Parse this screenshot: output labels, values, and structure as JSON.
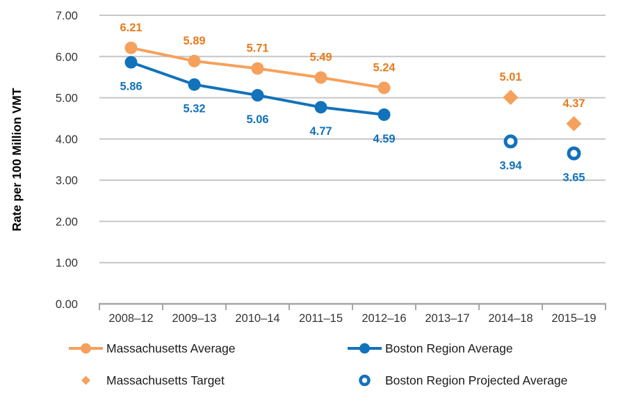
{
  "chart_data": {
    "type": "line",
    "title": "",
    "xlabel": "",
    "ylabel": "Rate per 100 Million VMT",
    "categories": [
      "2008–12",
      "2009–13",
      "2010–14",
      "2011–15",
      "2012–16",
      "2013–17",
      "2014–18",
      "2015–19"
    ],
    "y_ticks": [
      "0.00",
      "1.00",
      "2.00",
      "3.00",
      "4.00",
      "5.00",
      "6.00",
      "7.00"
    ],
    "ylim": [
      0,
      7
    ],
    "grid": "horizontal",
    "legend_position": "bottom",
    "series": [
      {
        "name": "Massachusetts Average",
        "type": "line",
        "marker": "circle",
        "color": "#F5A15D",
        "label_color": "#E87C1E",
        "label_position": "above",
        "x": [
          0,
          1,
          2,
          3,
          4
        ],
        "values": [
          6.21,
          5.89,
          5.71,
          5.49,
          5.24
        ]
      },
      {
        "name": "Boston Region Average",
        "type": "line",
        "marker": "circle",
        "color": "#1272BA",
        "label_color": "#1272BA",
        "label_position": "below",
        "x": [
          0,
          1,
          2,
          3,
          4
        ],
        "values": [
          5.86,
          5.32,
          5.06,
          4.77,
          4.59
        ]
      },
      {
        "name": "Massachusetts Target",
        "type": "scatter",
        "marker": "diamond",
        "color": "#F5A15D",
        "label_color": "#E87C1E",
        "label_position": "above",
        "x": [
          6,
          7
        ],
        "values": [
          5.01,
          4.37
        ]
      },
      {
        "name": "Boston Region Projected Average",
        "type": "scatter",
        "marker": "open-circle",
        "color": "#1272BA",
        "label_color": "#1272BA",
        "label_position": "below",
        "x": [
          6,
          7
        ],
        "values": [
          3.94,
          3.65
        ]
      }
    ],
    "colors": {
      "gridline": "#C6C6C6",
      "axis": "#A6A6A6",
      "tick_text": "#333333",
      "axis_title_text": "#000000",
      "legend_text": "#1A1A1A",
      "background": "#FFFFFF"
    }
  }
}
